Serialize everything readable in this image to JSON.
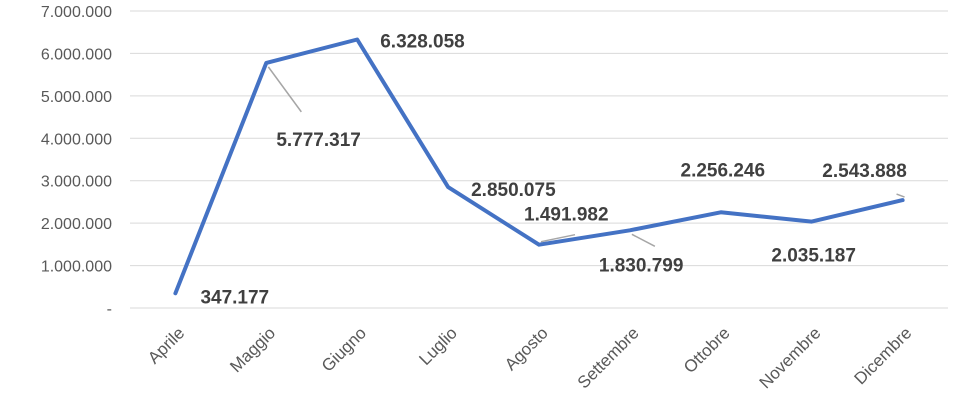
{
  "chart_data": {
    "type": "line",
    "title": "",
    "xlabel": "",
    "ylabel": "",
    "categories": [
      "Aprile",
      "Maggio",
      "Giugno",
      "Luglio",
      "Agosto",
      "Settembre",
      "Ottobre",
      "Novembre",
      "Dicembre"
    ],
    "series": [
      {
        "values": [
          347177,
          5777317,
          6328058,
          2850075,
          1491982,
          1830799,
          2256246,
          2035187,
          2543888
        ],
        "color": "#4472c4"
      }
    ],
    "data_labels": [
      "347.177",
      "5.777.317",
      "6.328.058",
      "2.850.075",
      "1.491.982",
      "1.830.799",
      "2.256.246",
      "2.035.187",
      "2.543.888"
    ],
    "ylim": [
      0,
      7000000
    ],
    "y_ticks": [
      0,
      1000000,
      2000000,
      3000000,
      4000000,
      5000000,
      6000000,
      7000000
    ],
    "y_tick_labels": [
      "-",
      "1.000.000",
      "2.000.000",
      "3.000.000",
      "4.000.000",
      "5.000.000",
      "6.000.000",
      "7.000.000"
    ],
    "grid": true,
    "legend": "none"
  }
}
